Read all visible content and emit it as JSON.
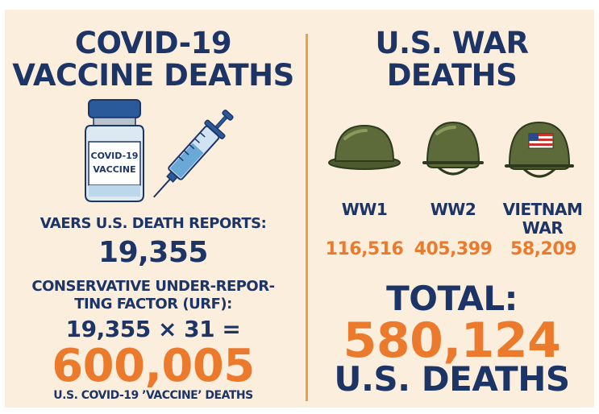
{
  "left": {
    "title_line1": "COVID-19",
    "title_line2": "VACCINE DEATHS",
    "vial_label_line1": "COVID-19",
    "vial_label_line2": "VACCINE",
    "vaers_label": "VAERS U.S. DEATH REPORTS:",
    "vaers_value": "19,355",
    "urf_label_line1": "CONSERVATIVE UNDER-REPOR-",
    "urf_label_line2": "TING FACTOR (URF):",
    "equation": "19,355 × 31 =",
    "result": "600,005",
    "result_caption": "U.S. COVID-19 ’VACCINE’ DEATHS"
  },
  "right": {
    "title_line1": "U.S. WAR",
    "title_line2": "DEATHS",
    "wars": [
      {
        "name_line1": "WW1",
        "name_line2": "",
        "deaths": "116,516",
        "icon": "ww1-helmet-icon"
      },
      {
        "name_line1": "WW2",
        "name_line2": "",
        "deaths": "405,399",
        "icon": "ww2-helmet-icon"
      },
      {
        "name_line1": "VIETNAM",
        "name_line2": "WAR",
        "deaths": "58,209",
        "icon": "vietnam-helmet-icon"
      }
    ],
    "total_label": "TOTAL:",
    "total_value": "580,124",
    "total_caption": "U.S. DEATHS"
  },
  "colors": {
    "background": "#fbeedd",
    "navy": "#1d3566",
    "orange": "#ec7a2d",
    "divider": "#e9a24a",
    "helmet": "#5d6b3a"
  }
}
